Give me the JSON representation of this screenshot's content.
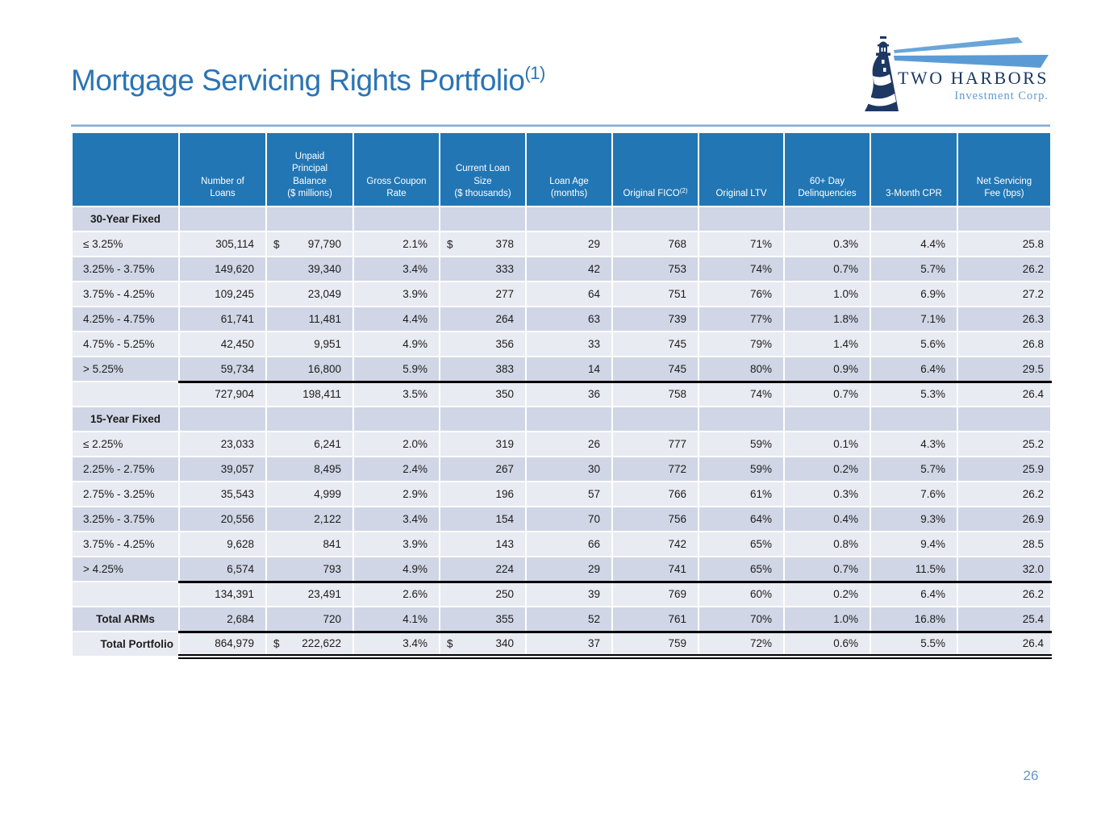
{
  "slide": {
    "title": "Mortgage Servicing Rights Portfolio",
    "title_sup": "(1)",
    "page_number": "26"
  },
  "logo": {
    "company": "TWO HARBORS",
    "subtitle": "Investment Corp.",
    "icon": "lighthouse-icon"
  },
  "colors": {
    "header_blue": "#2276b4",
    "title_blue": "#2b74b3",
    "row_dark": "#d0d6e5",
    "row_light": "#e9ebf2",
    "logo_navy": "#1c3863",
    "logo_light_blue": "#5b9bd5",
    "page_number_blue": "#6595c3"
  },
  "table": {
    "header": [
      {
        "text": ""
      },
      {
        "text": "Number of\nLoans"
      },
      {
        "text": "Unpaid\nPrincipal\nBalance\n($ millions)"
      },
      {
        "text": "Gross Coupon\nRate"
      },
      {
        "text": "Current Loan\nSize\n($ thousands)"
      },
      {
        "text": "Loan Age\n(months)"
      },
      {
        "text": "Original FICO",
        "sup": "(2)"
      },
      {
        "text": "Original LTV"
      },
      {
        "text": "60+ Day\nDelinquencies"
      },
      {
        "text": "3-Month CPR"
      },
      {
        "text": "Net Servicing\nFee (bps)"
      }
    ],
    "rows": [
      {
        "label": "30-Year Fixed",
        "type": "section",
        "values": [
          "",
          "",
          "",
          "",
          "",
          "",
          "",
          "",
          "",
          ""
        ]
      },
      {
        "label": "≤ 3.25%",
        "type": "data",
        "dollars": [
          1,
          3
        ],
        "values": [
          "305,114",
          "97,790",
          "2.1%",
          "378",
          "29",
          "768",
          "71%",
          "0.3%",
          "4.4%",
          "25.8"
        ]
      },
      {
        "label": "3.25% - 3.75%",
        "type": "data",
        "values": [
          "149,620",
          "39,340",
          "3.4%",
          "333",
          "42",
          "753",
          "74%",
          "0.7%",
          "5.7%",
          "26.2"
        ]
      },
      {
        "label": "3.75% - 4.25%",
        "type": "data",
        "values": [
          "109,245",
          "23,049",
          "3.9%",
          "277",
          "64",
          "751",
          "76%",
          "1.0%",
          "6.9%",
          "27.2"
        ]
      },
      {
        "label": "4.25% - 4.75%",
        "type": "data",
        "values": [
          "61,741",
          "11,481",
          "4.4%",
          "264",
          "63",
          "739",
          "77%",
          "1.8%",
          "7.1%",
          "26.3"
        ]
      },
      {
        "label": "4.75% - 5.25%",
        "type": "data",
        "values": [
          "42,450",
          "9,951",
          "4.9%",
          "356",
          "33",
          "745",
          "79%",
          "1.4%",
          "5.6%",
          "26.8"
        ]
      },
      {
        "label": "> 5.25%",
        "type": "data",
        "line": "single",
        "values": [
          "59,734",
          "16,800",
          "5.9%",
          "383",
          "14",
          "745",
          "80%",
          "0.9%",
          "6.4%",
          "29.5"
        ]
      },
      {
        "label": "",
        "type": "subtotal",
        "values": [
          "727,904",
          "198,411",
          "3.5%",
          "350",
          "36",
          "758",
          "74%",
          "0.7%",
          "5.3%",
          "26.4"
        ]
      },
      {
        "label": "15-Year Fixed",
        "type": "section",
        "values": [
          "",
          "",
          "",
          "",
          "",
          "",
          "",
          "",
          "",
          ""
        ]
      },
      {
        "label": "≤ 2.25%",
        "type": "data",
        "values": [
          "23,033",
          "6,241",
          "2.0%",
          "319",
          "26",
          "777",
          "59%",
          "0.1%",
          "4.3%",
          "25.2"
        ]
      },
      {
        "label": "2.25% - 2.75%",
        "type": "data",
        "values": [
          "39,057",
          "8,495",
          "2.4%",
          "267",
          "30",
          "772",
          "59%",
          "0.2%",
          "5.7%",
          "25.9"
        ]
      },
      {
        "label": "2.75% - 3.25%",
        "type": "data",
        "values": [
          "35,543",
          "4,999",
          "2.9%",
          "196",
          "57",
          "766",
          "61%",
          "0.3%",
          "7.6%",
          "26.2"
        ]
      },
      {
        "label": "3.25% - 3.75%",
        "type": "data",
        "values": [
          "20,556",
          "2,122",
          "3.4%",
          "154",
          "70",
          "756",
          "64%",
          "0.4%",
          "9.3%",
          "26.9"
        ]
      },
      {
        "label": "3.75% - 4.25%",
        "type": "data",
        "values": [
          "9,628",
          "841",
          "3.9%",
          "143",
          "66",
          "742",
          "65%",
          "0.8%",
          "9.4%",
          "28.5"
        ]
      },
      {
        "label": "> 4.25%",
        "type": "data",
        "line": "single",
        "values": [
          "6,574",
          "793",
          "4.9%",
          "224",
          "29",
          "741",
          "65%",
          "0.7%",
          "11.5%",
          "32.0"
        ]
      },
      {
        "label": "",
        "type": "subtotal",
        "values": [
          "134,391",
          "23,491",
          "2.6%",
          "250",
          "39",
          "769",
          "60%",
          "0.2%",
          "6.4%",
          "26.2"
        ]
      },
      {
        "label": "Total ARMs",
        "type": "total_arms",
        "line": "single",
        "values": [
          "2,684",
          "720",
          "4.1%",
          "355",
          "52",
          "761",
          "70%",
          "1.0%",
          "16.8%",
          "25.4"
        ]
      },
      {
        "label": "Total Portfolio",
        "type": "total",
        "line": "double",
        "dollars": [
          1,
          3
        ],
        "values": [
          "864,979",
          "222,622",
          "3.4%",
          "340",
          "37",
          "759",
          "72%",
          "0.6%",
          "5.5%",
          "26.4"
        ]
      }
    ]
  }
}
